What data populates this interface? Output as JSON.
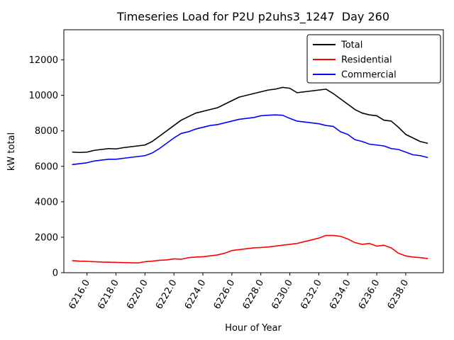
{
  "chart_data": {
    "type": "line",
    "title": "Timeseries Load for P2U p2uhs3_1247  Day 260",
    "xlabel": "Hour of Year",
    "ylabel": "kW total",
    "xlim": [
      6214.4,
      6240.6
    ],
    "ylim": [
      0,
      13700
    ],
    "grid": false,
    "legend_position": "upper right",
    "xticks": [
      6216,
      6218,
      6220,
      6222,
      6224,
      6226,
      6228,
      6230,
      6232,
      6234,
      6236,
      6238
    ],
    "xtick_labels": [
      "6216.0",
      "6218.0",
      "6220.0",
      "6222.0",
      "6224.0",
      "6226.0",
      "6228.0",
      "6230.0",
      "6232.0",
      "6234.0",
      "6236.0",
      "6238.0"
    ],
    "yticks": [
      0,
      2000,
      4000,
      6000,
      8000,
      10000,
      12000
    ],
    "ytick_labels": [
      "0",
      "2000",
      "4000",
      "6000",
      "8000",
      "10000",
      "12000"
    ],
    "x": [
      6215.0,
      6215.5,
      6216.0,
      6216.5,
      6217.0,
      6217.5,
      6218.0,
      6218.5,
      6219.0,
      6219.5,
      6220.0,
      6220.5,
      6221.0,
      6221.5,
      6222.0,
      6222.5,
      6223.0,
      6223.5,
      6224.0,
      6224.5,
      6225.0,
      6225.5,
      6226.0,
      6226.5,
      6227.0,
      6227.5,
      6228.0,
      6228.5,
      6229.0,
      6229.5,
      6230.0,
      6230.5,
      6231.0,
      6231.5,
      6232.0,
      6232.5,
      6233.0,
      6233.5,
      6234.0,
      6234.5,
      6235.0,
      6235.5,
      6236.0,
      6236.5,
      6237.0,
      6237.5,
      6238.0,
      6238.5,
      6239.0,
      6239.5
    ],
    "series": [
      {
        "name": "Total",
        "color": "#000000",
        "values": [
          6800,
          6780,
          6800,
          6900,
          6950,
          7000,
          6980,
          7050,
          7100,
          7150,
          7200,
          7400,
          7700,
          8000,
          8300,
          8600,
          8800,
          9000,
          9100,
          9200,
          9300,
          9500,
          9700,
          9900,
          10000,
          10100,
          10200,
          10300,
          10350,
          10450,
          10400,
          10150,
          10200,
          10250,
          10300,
          10350,
          10100,
          9800,
          9500,
          9200,
          9000,
          8900,
          8850,
          8600,
          8550,
          8200,
          7800,
          7600,
          7400,
          7300
        ]
      },
      {
        "name": "Residential",
        "color": "#ff0000",
        "values": [
          680,
          650,
          640,
          620,
          600,
          590,
          580,
          570,
          560,
          550,
          620,
          650,
          700,
          720,
          780,
          760,
          850,
          880,
          900,
          950,
          1000,
          1100,
          1250,
          1300,
          1350,
          1400,
          1420,
          1450,
          1500,
          1550,
          1600,
          1650,
          1750,
          1850,
          1950,
          2100,
          2100,
          2050,
          1900,
          1700,
          1600,
          1650,
          1500,
          1550,
          1400,
          1100,
          950,
          880,
          850,
          800
        ]
      },
      {
        "name": "Commercial",
        "color": "#0000ff",
        "values": [
          6100,
          6150,
          6200,
          6300,
          6350,
          6400,
          6400,
          6450,
          6500,
          6550,
          6600,
          6750,
          7000,
          7300,
          7600,
          7850,
          7950,
          8100,
          8200,
          8300,
          8350,
          8450,
          8550,
          8650,
          8700,
          8750,
          8850,
          8880,
          8900,
          8880,
          8700,
          8550,
          8500,
          8450,
          8400,
          8300,
          8250,
          7950,
          7800,
          7500,
          7400,
          7250,
          7200,
          7150,
          7000,
          6950,
          6800,
          6650,
          6600,
          6500
        ]
      }
    ]
  }
}
